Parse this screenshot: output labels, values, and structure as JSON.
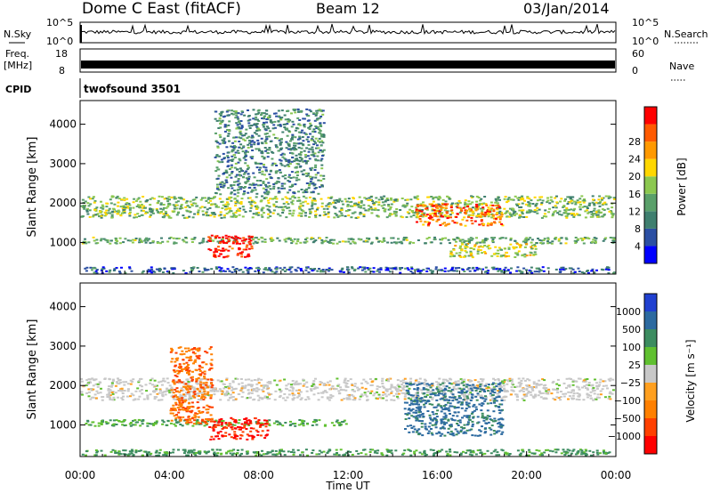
{
  "header": {
    "station": "Dome C East (fitACF)",
    "beam": "Beam 12",
    "date": "03/Jan/2014"
  },
  "top_panels": {
    "nsky_label": "N.Sky",
    "nsky_ticks": [
      "10^5",
      "10^0"
    ],
    "nsearch_label": "N.Search",
    "nsearch_ticks": [
      "10^5",
      "10^0"
    ],
    "freq_label": "Freq.",
    "freq_unit": "[MHz]",
    "freq_ticks": [
      "18",
      "8"
    ],
    "nave_label": "Nave",
    "nave_ticks": [
      "60",
      "0"
    ],
    "cpid_label": "CPID",
    "cpid_program": "twofsound 3501"
  },
  "colors": {
    "power_scale": [
      "#0000ff",
      "#2b4fa3",
      "#3f7f6f",
      "#5aa06a",
      "#8cc850",
      "#ffd700",
      "#ff9900",
      "#ff5a00",
      "#ff0000"
    ],
    "velocity_scale": [
      "#ff0000",
      "#ff4000",
      "#ff8000",
      "#ffa020",
      "#c8c8c8",
      "#60c030",
      "#3c8c60",
      "#2c6aa0",
      "#2040d0"
    ]
  },
  "chart_data": [
    {
      "type": "heatmap",
      "panel": "power",
      "ylabel": "Slant Range [km]",
      "ylim": [
        200,
        4600
      ],
      "y_ticks": [
        "1000",
        "2000",
        "3000",
        "4000"
      ],
      "xlim": [
        "00:00",
        "24:00"
      ],
      "colorbar_label": "Power [dB]",
      "colorbar_ticks": [
        "4",
        "8",
        "12",
        "16",
        "20",
        "24",
        "28"
      ],
      "scatter_regions": [
        {
          "t0": 0.0,
          "t1": 24.0,
          "r0": 1600,
          "r1": 2200,
          "level": 0.45
        },
        {
          "t0": 0.0,
          "t1": 24.0,
          "r0": 950,
          "r1": 1150,
          "level": 0.4
        },
        {
          "t0": 5.7,
          "t1": 7.8,
          "r0": 600,
          "r1": 1200,
          "level": 0.95
        },
        {
          "t0": 15.0,
          "t1": 19.0,
          "r0": 1400,
          "r1": 2000,
          "level": 0.8
        },
        {
          "t0": 16.5,
          "t1": 20.5,
          "r0": 600,
          "r1": 1000,
          "level": 0.55
        },
        {
          "t0": 0.0,
          "t1": 24.0,
          "r0": 200,
          "r1": 400,
          "level": 0.2
        },
        {
          "t0": 6.0,
          "t1": 11.0,
          "r0": 2200,
          "r1": 4400,
          "level": 0.3
        }
      ]
    },
    {
      "type": "heatmap",
      "panel": "velocity",
      "ylabel": "Slant Range [km]",
      "xlabel": "Time UT",
      "ylim": [
        200,
        4600
      ],
      "y_ticks": [
        "1000",
        "2000",
        "3000",
        "4000"
      ],
      "x_ticks": [
        "00:00",
        "04:00",
        "08:00",
        "12:00",
        "16:00",
        "20:00",
        "00:00"
      ],
      "colorbar_label": "Velocity [m s⁻¹]",
      "colorbar_ticks": [
        "1000",
        "500",
        "100",
        "25",
        "−25",
        "−100",
        "−500",
        "−1000"
      ],
      "scatter_regions": [
        {
          "t0": 0.0,
          "t1": 24.0,
          "r0": 1600,
          "r1": 2200,
          "level": 0.0
        },
        {
          "t0": 0.0,
          "t1": 12.0,
          "r0": 950,
          "r1": 1150,
          "level": 0.35
        },
        {
          "t0": 5.7,
          "t1": 8.5,
          "r0": 600,
          "r1": 1200,
          "level": -0.9
        },
        {
          "t0": 14.5,
          "t1": 19.0,
          "r0": 700,
          "r1": 2100,
          "level": 0.7
        },
        {
          "t0": 0.0,
          "t1": 24.0,
          "r0": 200,
          "r1": 400,
          "level": 0.45
        },
        {
          "t0": 4.0,
          "t1": 6.0,
          "r0": 1000,
          "r1": 3000,
          "level": -0.6
        }
      ]
    }
  ]
}
